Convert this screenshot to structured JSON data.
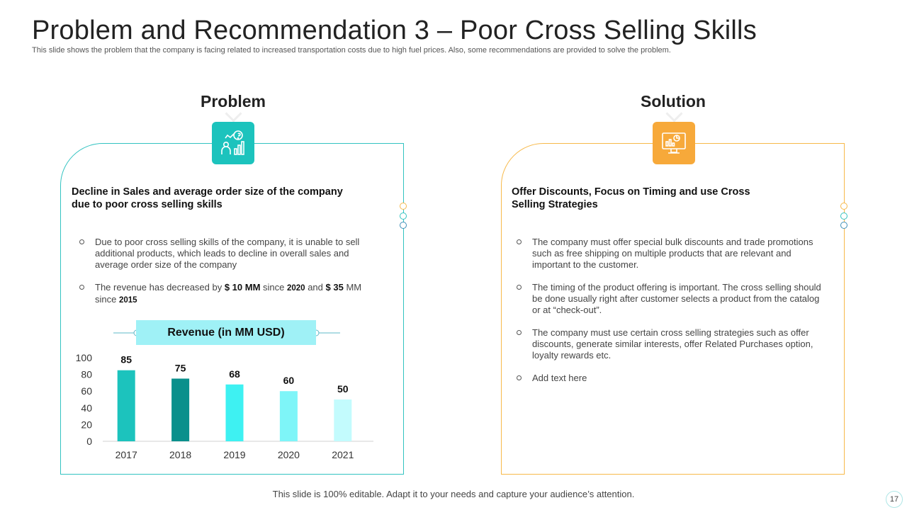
{
  "title": "Problem and Recommendation 3 – Poor Cross Selling Skills",
  "subtitle": "This slide shows the problem that the company is facing related to increased transportation costs due to high fuel prices. Also, some recommendations are provided to solve the problem.",
  "problem": {
    "label": "Problem",
    "icon": "analytics-person-icon",
    "heading": [
      "Decline in Sales and average order size of the company",
      "due to poor cross selling skills"
    ],
    "bullet1": "Due to poor cross selling skills of the company, it is unable to sell additional products, which leads to decline in overall sales and average order size of the company",
    "bullet2": {
      "p1": "The revenue has decreased by ",
      "b1": "$ 10 MM",
      "p2": " since ",
      "b2": "2020",
      "p3": " and ",
      "b3": "$ 35",
      "p4": " MM since ",
      "b4": "2015"
    }
  },
  "solution": {
    "label": "Solution",
    "icon": "monitor-chart-icon",
    "heading": [
      "Offer Discounts, Focus on Timing and use Cross",
      "Selling Strategies"
    ],
    "bullets": [
      "The company must offer special bulk discounts and trade promotions such as free shipping on multiple products that are relevant and important to the customer.",
      "The timing of the product offering is important. The cross selling should be done usually right after customer selects a product from the catalog or at “check-out”.",
      "The company must use certain cross selling strategies such as offer discounts, generate similar interests, offer Related Purchases option, loyalty rewards etc.",
      "Add text here"
    ]
  },
  "chart_data": {
    "type": "bar",
    "title": "Revenue (in MM USD)",
    "categories": [
      "2017",
      "2018",
      "2019",
      "2020",
      "2021"
    ],
    "values": [
      85,
      75,
      68,
      60,
      50
    ],
    "colors": [
      "#1cc3bd",
      "#0a908c",
      "#3ef1f2",
      "#7ef5f8",
      "#c3fbfd"
    ],
    "ylim": [
      0,
      100
    ],
    "yticks": [
      0,
      20,
      40,
      60,
      80,
      100
    ],
    "xlabel": "",
    "ylabel": ""
  },
  "footer": "This slide is 100% editable. Adapt it to your needs and capture your audience’s attention.",
  "page_number": "17",
  "colors": {
    "teal": "#1cc3bd",
    "orange": "#f7a93a"
  }
}
